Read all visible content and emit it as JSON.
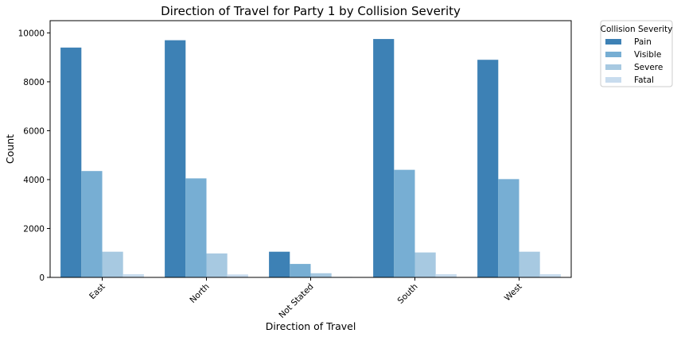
{
  "chart_data": {
    "type": "bar",
    "title": "Direction of Travel for Party 1 by Collision Severity",
    "xlabel": "Direction of Travel",
    "ylabel": "Count",
    "ylim": [
      0,
      10500
    ],
    "yticks": [
      0,
      2000,
      4000,
      6000,
      8000,
      10000
    ],
    "categories": [
      "East",
      "North",
      "Not Stated",
      "South",
      "West"
    ],
    "series": [
      {
        "name": "Pain",
        "color": "#3d81b5",
        "values": [
          9400,
          9700,
          1050,
          9750,
          8900
        ]
      },
      {
        "name": "Visible",
        "color": "#77aed3",
        "values": [
          4350,
          4050,
          550,
          4400,
          4020
        ]
      },
      {
        "name": "Severe",
        "color": "#a7c9e1",
        "values": [
          1050,
          980,
          170,
          1020,
          1050
        ]
      },
      {
        "name": "Fatal",
        "color": "#c8dcee",
        "values": [
          130,
          120,
          20,
          130,
          130
        ]
      }
    ],
    "legend": {
      "title": "Collision Severity",
      "placement": "outside-top-right"
    },
    "grid": false
  }
}
